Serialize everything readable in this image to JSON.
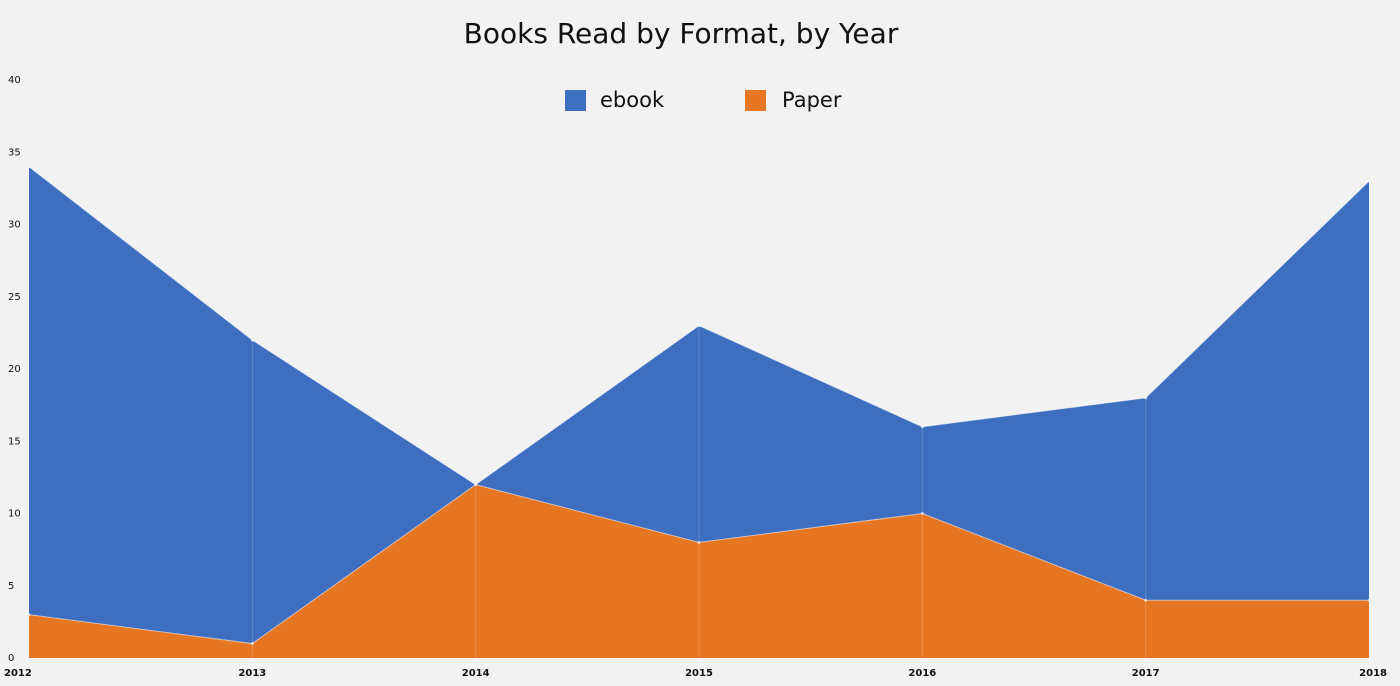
{
  "chart_data": {
    "type": "area",
    "title": "Books Read by Format, by Year",
    "xlabel": "",
    "ylabel": "",
    "x": [
      "2012",
      "2013",
      "2014",
      "2015",
      "2016",
      "2017",
      "2018"
    ],
    "yticks": [
      "0",
      "5",
      "10",
      "15",
      "20",
      "25",
      "30",
      "35",
      "40"
    ],
    "ylim": [
      0,
      40
    ],
    "grid": false,
    "legend_position": "top-center",
    "series": [
      {
        "name": "ebook",
        "values": [
          34,
          22,
          12,
          23,
          16,
          18,
          33
        ],
        "color": "#3d6ebf"
      },
      {
        "name": "Paper",
        "values": [
          3,
          1,
          12,
          8,
          10,
          4,
          4
        ],
        "color": "#e67622"
      }
    ]
  }
}
